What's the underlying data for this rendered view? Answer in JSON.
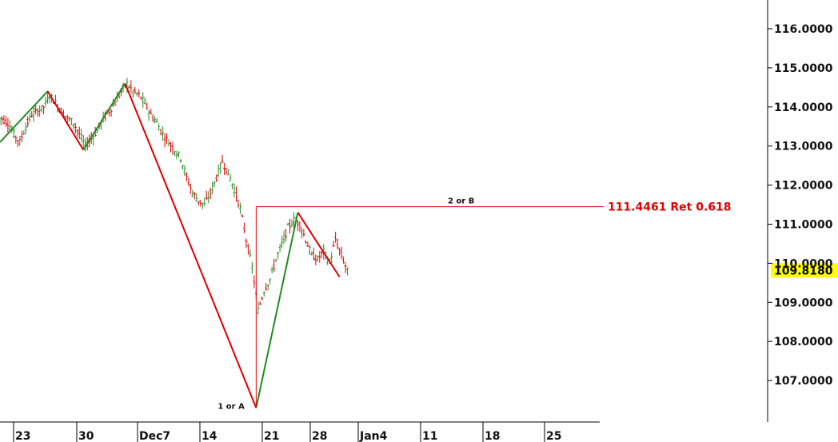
{
  "chart_data": {
    "type": "ohlc",
    "y_ticks": [
      "116.0000",
      "115.0000",
      "114.0000",
      "113.0000",
      "112.0000",
      "111.0000",
      "110.0000",
      "109.0000",
      "108.0000",
      "107.0000"
    ],
    "x_ticks": [
      "23",
      "30",
      "Dec7",
      "14",
      "21",
      "28",
      "Jan4",
      "11",
      "18",
      "25"
    ],
    "ylim": [
      106.0,
      116.8
    ],
    "last_price": {
      "label": "109.8180",
      "value": 109.818,
      "highlight_color": "#ffff00"
    },
    "retracement": {
      "label": "111.4461 Ret 0.618",
      "value": 111.4461,
      "color": "#e00000"
    },
    "wave_labels": [
      {
        "text": "1 or A",
        "price": 106.3
      },
      {
        "text": "2 or B",
        "price": 111.446
      }
    ],
    "up_color": "#228B22",
    "down_color": "#e00000",
    "zigzag": [
      {
        "day": 0,
        "price": 113.1,
        "color": "#228B22"
      },
      {
        "day": 8,
        "price": 114.4,
        "color": "#e00000"
      },
      {
        "day": 14,
        "price": 112.9,
        "color": "#228B22"
      },
      {
        "day": 21,
        "price": 114.6,
        "color": "#e00000"
      },
      {
        "day": 43,
        "price": 106.3,
        "color": "#228B22"
      },
      {
        "day": 50,
        "price": 111.3,
        "color": "#e00000"
      },
      {
        "day": 57,
        "price": 109.65,
        "color": "#e00000"
      }
    ],
    "closes": [
      113.7,
      113.6,
      113.3,
      113.1,
      113.5,
      113.8,
      113.9,
      114.0,
      114.3,
      114.1,
      113.9,
      113.7,
      113.6,
      113.3,
      113.0,
      113.2,
      113.4,
      113.7,
      113.9,
      114.1,
      114.4,
      114.6,
      114.4,
      114.3,
      114.1,
      113.8,
      113.6,
      113.3,
      113.1,
      112.9,
      112.7,
      112.2,
      111.8,
      111.6,
      111.5,
      111.8,
      112.2,
      112.6,
      112.3,
      111.9,
      111.4,
      110.6,
      109.9,
      108.8,
      109.3,
      109.6,
      110.1,
      110.5,
      110.9,
      111.1,
      111.0,
      110.6,
      110.2,
      110.1,
      110.3,
      110.0,
      110.6,
      110.2,
      109.8
    ]
  }
}
